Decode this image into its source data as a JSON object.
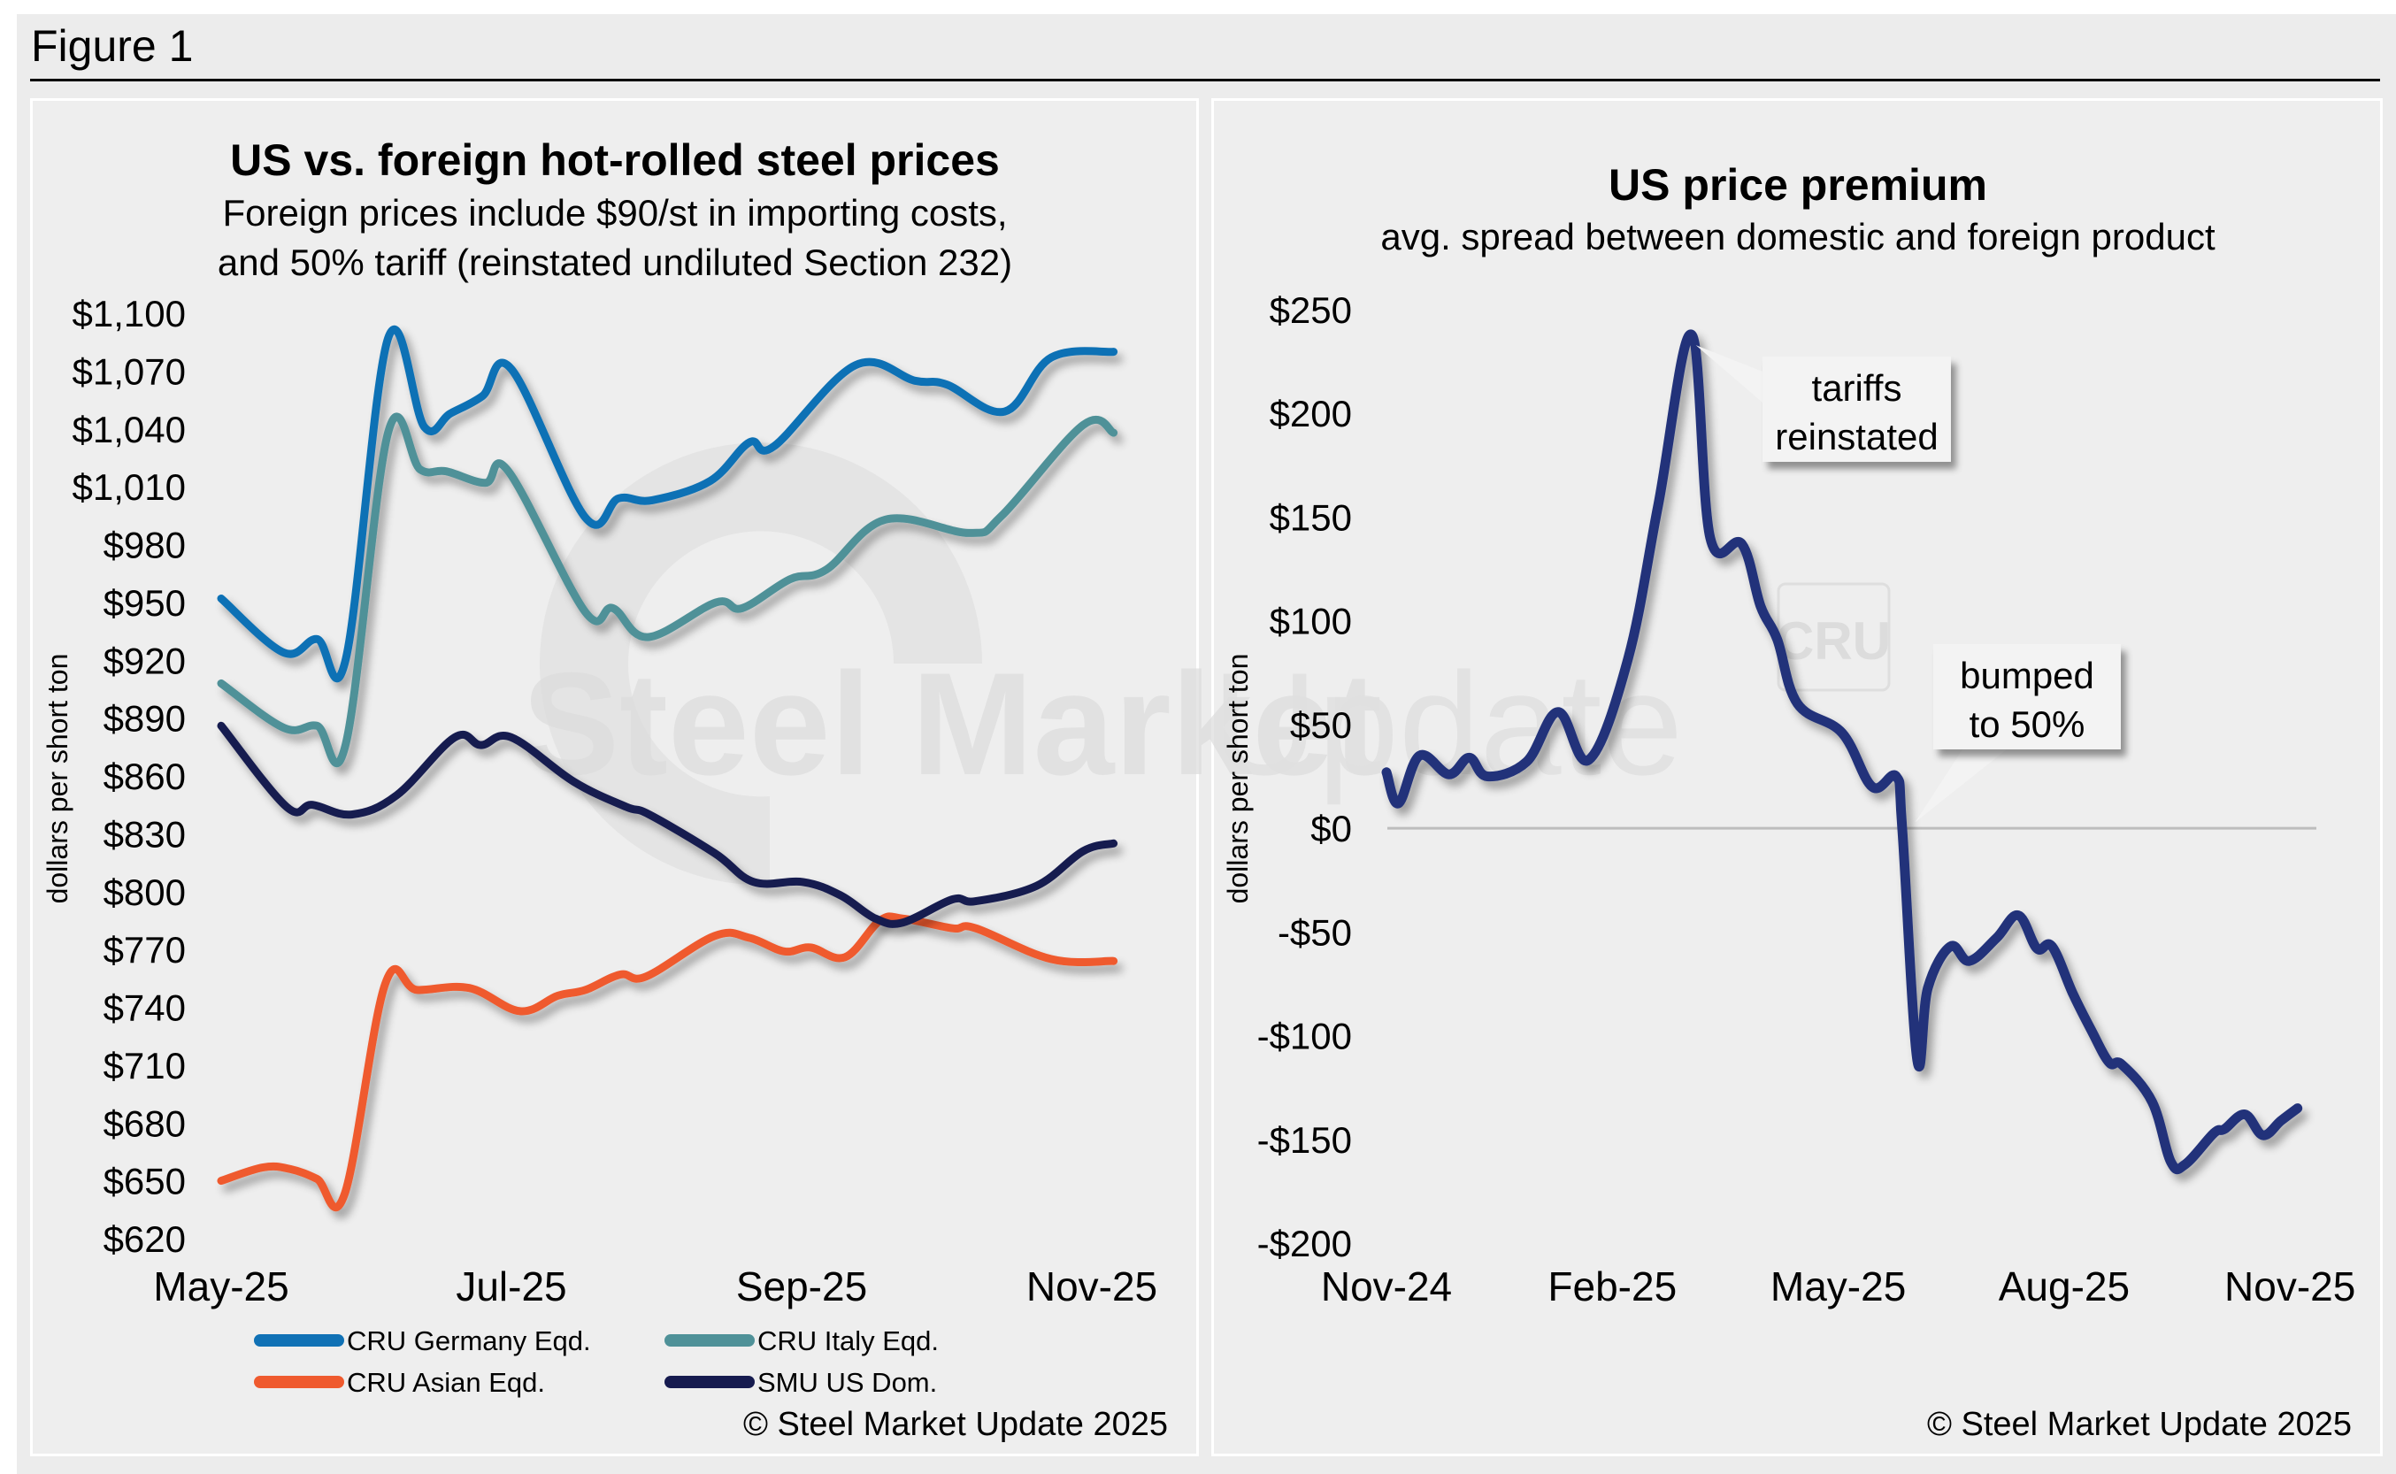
{
  "figure": {
    "title": "Figure 1",
    "background": "#ececec"
  },
  "chart_data": [
    {
      "type": "line",
      "title": "US vs. foreign hot-rolled steel prices",
      "subtitle": [
        "Foreign prices include $90/st in importing costs,",
        "and 50% tariff (reinstated undiluted Section 232)"
      ],
      "xlabel": "",
      "ylabel": "dollars per short ton",
      "ylim": [
        620,
        1100
      ],
      "yticks": [
        1100,
        1070,
        1040,
        1010,
        980,
        950,
        920,
        890,
        860,
        830,
        800,
        770,
        740,
        710,
        680,
        650,
        620
      ],
      "ytick_labels": [
        "$1,100",
        "$1,070",
        "$1,040",
        "$1,010",
        "$980",
        "$950",
        "$920",
        "$890",
        "$860",
        "$830",
        "$800",
        "$770",
        "$740",
        "$710",
        "$680",
        "$650",
        "$620"
      ],
      "x_unit": "months since May-25",
      "xlim": [
        0,
        6.3
      ],
      "xticks": [
        0,
        2,
        4,
        6
      ],
      "xtick_labels": [
        "May-25",
        "Jul-25",
        "Sep-25",
        "Nov-25"
      ],
      "grid": false,
      "legend": "bottom",
      "source": "© Steel Market Update 2025",
      "watermark": "Steel Market Update",
      "series": [
        {
          "name": "CRU Germany Eqd.",
          "color": "#1071b5",
          "x": [
            0,
            0.43,
            0.66,
            0.86,
            1.15,
            1.4,
            1.58,
            1.8,
            2.0,
            2.51,
            2.74,
            2.97,
            3.37,
            3.64,
            3.81,
            4.37,
            4.78,
            5.0,
            5.4,
            5.72,
            6.15
          ],
          "values": [
            952,
            924,
            931,
            921,
            1087,
            1041,
            1048,
            1057,
            1071,
            994,
            1004,
            1003,
            1013,
            1033,
            1031,
            1073,
            1065,
            1063,
            1049,
            1077,
            1080
          ]
        },
        {
          "name": "CRU Italy Eqd.",
          "color": "#4f9198",
          "x": [
            0,
            0.43,
            0.66,
            0.86,
            1.15,
            1.37,
            1.55,
            1.82,
            1.98,
            2.51,
            2.7,
            2.94,
            3.41,
            3.59,
            3.92,
            4.17,
            4.58,
            5.16,
            5.38,
            5.94,
            6.15
          ],
          "values": [
            908,
            885,
            886,
            877,
            1038,
            1019,
            1018,
            1012,
            1018,
            945,
            947,
            932,
            950,
            947,
            962,
            967,
            993,
            986,
            995,
            1042,
            1038
          ]
        },
        {
          "name": "CRU Asian Eqd.",
          "color": "#ef5a2e",
          "x": [
            0,
            0.29,
            0.48,
            0.66,
            0.85,
            1.13,
            1.35,
            1.71,
            2.06,
            2.32,
            2.51,
            2.75,
            2.93,
            3.4,
            3.64,
            3.88,
            4.06,
            4.3,
            4.54,
            4.7,
            5.04,
            5.2,
            5.72,
            6.15
          ],
          "values": [
            650,
            657,
            656,
            651,
            643,
            752,
            749,
            750,
            738,
            746,
            749,
            757,
            756,
            777,
            776,
            769,
            771,
            766,
            785,
            786,
            781,
            781,
            765,
            764
          ]
        },
        {
          "name": "SMU US Dom.",
          "color": "#161b4f",
          "x": [
            0,
            0.45,
            0.63,
            0.9,
            1.21,
            1.61,
            1.79,
            2.0,
            2.43,
            2.79,
            2.95,
            3.4,
            3.67,
            4.01,
            4.27,
            4.51,
            4.7,
            5.04,
            5.2,
            5.62,
            5.94,
            6.15
          ],
          "values": [
            886,
            844,
            845,
            840,
            850,
            880,
            876,
            880,
            857,
            844,
            840,
            820,
            805,
            805,
            798,
            786,
            784,
            796,
            795,
            803,
            821,
            825
          ]
        }
      ]
    },
    {
      "type": "line",
      "title": "US price premium",
      "subtitle": [
        "avg. spread between domestic and foreign product"
      ],
      "xlabel": "",
      "ylabel": "dollars per short ton",
      "ylim": [
        -200,
        250
      ],
      "yticks": [
        250,
        200,
        150,
        100,
        50,
        0,
        -50,
        -100,
        -150,
        -200
      ],
      "ytick_labels": [
        "$250",
        "$200",
        "$150",
        "$100",
        "$50",
        "$0",
        "-$50",
        "-$100",
        "-$150",
        "-$200"
      ],
      "x_unit": "months since Nov-24",
      "xlim": [
        0,
        12.2
      ],
      "xticks": [
        0,
        3,
        6,
        9,
        12
      ],
      "xtick_labels": [
        "Nov-24",
        "Feb-25",
        "May-25",
        "Aug-25",
        "Nov-25"
      ],
      "grid": false,
      "zero_line": true,
      "source": "© Steel Market Update 2025",
      "watermark": "Steel Market Update",
      "annotations": [
        {
          "text": [
            "tariffs",
            "reinstated"
          ],
          "x": 4.05,
          "y": 238
        },
        {
          "text": [
            "bumped",
            "to 50%"
          ],
          "x": 7.0,
          "y": 20
        }
      ],
      "series": [
        {
          "name": "US price premium",
          "color": "#22327a",
          "x": [
            0,
            0.16,
            0.44,
            0.83,
            1.1,
            1.34,
            1.86,
            2.28,
            2.69,
            3.21,
            3.61,
            4.05,
            4.3,
            4.72,
            4.97,
            5.19,
            5.46,
            6.05,
            6.45,
            6.77,
            6.85,
            7.05,
            7.19,
            7.49,
            7.74,
            8.1,
            8.39,
            8.64,
            8.84,
            9.12,
            9.37,
            9.6,
            9.77,
            10.17,
            10.42,
            10.61,
            10.99,
            11.13,
            11.4,
            11.64,
            11.88,
            12.1
          ],
          "values": [
            27,
            12,
            35,
            26,
            34,
            25,
            32,
            56,
            33,
            82,
            156,
            238,
            140,
            137,
            107,
            91,
            60,
            46,
            20,
            25,
            0,
            -112,
            -77,
            -57,
            -64,
            -53,
            -42,
            -58,
            -57,
            -80,
            -98,
            -113,
            -114,
            -132,
            -161,
            -162,
            -147,
            -145,
            -138,
            -148,
            -141,
            -135
          ]
        }
      ]
    }
  ]
}
